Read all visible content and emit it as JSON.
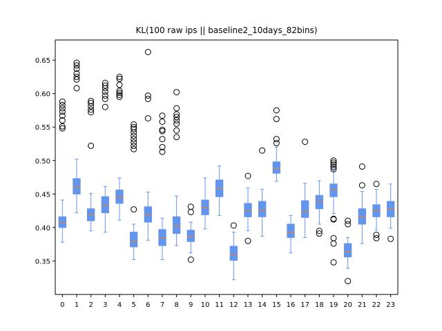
{
  "chart_data": {
    "type": "boxplot",
    "title": "KL(100 raw ips || baseline2_10days_82bins)",
    "xlabel": "",
    "ylabel": "",
    "categories": [
      "0",
      "1",
      "2",
      "3",
      "4",
      "5",
      "6",
      "7",
      "8",
      "9",
      "10",
      "11",
      "12",
      "13",
      "14",
      "15",
      "16",
      "17",
      "18",
      "19",
      "20",
      "21",
      "22",
      "23"
    ],
    "ylim": [
      0.3,
      0.68
    ],
    "yticks": [
      0.35,
      0.4,
      0.45,
      0.5,
      0.55,
      0.6,
      0.65
    ],
    "ytick_labels": [
      "0.35",
      "0.40",
      "0.45",
      "0.50",
      "0.55",
      "0.60",
      "0.65"
    ],
    "box_color": "#6495ed",
    "median_color": "#ff7f0e",
    "grid": false,
    "boxes": [
      {
        "whislo": 0.378,
        "q1": 0.4,
        "med": 0.407,
        "q3": 0.416,
        "whishi": 0.441,
        "fliers": [
          0.548,
          0.551,
          0.56,
          0.567,
          0.573,
          0.578,
          0.583,
          0.588
        ]
      },
      {
        "whislo": 0.422,
        "q1": 0.45,
        "med": 0.46,
        "q3": 0.473,
        "whishi": 0.502,
        "fliers": [
          0.608,
          0.621,
          0.625,
          0.63,
          0.637,
          0.642,
          0.646
        ]
      },
      {
        "whislo": 0.395,
        "q1": 0.41,
        "med": 0.419,
        "q3": 0.428,
        "whishi": 0.451,
        "fliers": [
          0.522,
          0.572,
          0.576,
          0.581,
          0.586,
          0.589
        ]
      },
      {
        "whislo": 0.393,
        "q1": 0.422,
        "med": 0.433,
        "q3": 0.446,
        "whishi": 0.461,
        "fliers": [
          0.58,
          0.592,
          0.597,
          0.603,
          0.608,
          0.612,
          0.616
        ]
      },
      {
        "whislo": 0.411,
        "q1": 0.436,
        "med": 0.445,
        "q3": 0.456,
        "whishi": 0.474,
        "fliers": [
          0.595,
          0.598,
          0.601,
          0.604,
          0.613,
          0.622,
          0.625
        ]
      },
      {
        "whislo": 0.352,
        "q1": 0.371,
        "med": 0.379,
        "q3": 0.393,
        "whishi": 0.405,
        "fliers": [
          0.427,
          0.517,
          0.522,
          0.527,
          0.532,
          0.537,
          0.542,
          0.547,
          0.55,
          0.554
        ]
      },
      {
        "whislo": 0.381,
        "q1": 0.408,
        "med": 0.42,
        "q3": 0.431,
        "whishi": 0.453,
        "fliers": [
          0.563,
          0.592,
          0.597,
          0.662
        ]
      },
      {
        "whislo": 0.352,
        "q1": 0.373,
        "med": 0.384,
        "q3": 0.397,
        "whishi": 0.414,
        "fliers": [
          0.513,
          0.52,
          0.532,
          0.544,
          0.546,
          0.558,
          0.567
        ]
      },
      {
        "whislo": 0.373,
        "q1": 0.391,
        "med": 0.402,
        "q3": 0.416,
        "whishi": 0.447,
        "fliers": [
          0.535,
          0.545,
          0.555,
          0.56,
          0.565,
          0.569,
          0.578,
          0.602
        ]
      },
      {
        "whislo": 0.362,
        "q1": 0.379,
        "med": 0.386,
        "q3": 0.396,
        "whishi": 0.408,
        "fliers": [
          0.352,
          0.423,
          0.431
        ]
      },
      {
        "whislo": 0.398,
        "q1": 0.419,
        "med": 0.43,
        "q3": 0.441,
        "whishi": 0.474,
        "fliers": []
      },
      {
        "whislo": 0.418,
        "q1": 0.446,
        "med": 0.459,
        "q3": 0.471,
        "whishi": 0.492,
        "fliers": []
      },
      {
        "whislo": 0.322,
        "q1": 0.351,
        "med": 0.36,
        "q3": 0.372,
        "whishi": 0.393,
        "fliers": [
          0.403
        ]
      },
      {
        "whislo": 0.395,
        "q1": 0.416,
        "med": 0.425,
        "q3": 0.436,
        "whishi": 0.459,
        "fliers": [
          0.38,
          0.477
        ]
      },
      {
        "whislo": 0.387,
        "q1": 0.416,
        "med": 0.426,
        "q3": 0.439,
        "whishi": 0.457,
        "fliers": [
          0.515
        ]
      },
      {
        "whislo": 0.469,
        "q1": 0.481,
        "med": 0.488,
        "q3": 0.498,
        "whishi": 0.52,
        "fliers": [
          0.526,
          0.532,
          0.562,
          0.575
        ]
      },
      {
        "whislo": 0.362,
        "q1": 0.385,
        "med": 0.393,
        "q3": 0.405,
        "whishi": 0.418,
        "fliers": []
      },
      {
        "whislo": 0.385,
        "q1": 0.415,
        "med": 0.424,
        "q3": 0.44,
        "whishi": 0.466,
        "fliers": [
          0.528
        ]
      },
      {
        "whislo": 0.405,
        "q1": 0.428,
        "med": 0.439,
        "q3": 0.448,
        "whishi": 0.47,
        "fliers": [
          0.391,
          0.395
        ]
      },
      {
        "whislo": 0.421,
        "q1": 0.446,
        "med": 0.456,
        "q3": 0.465,
        "whishi": 0.488,
        "fliers": [
          0.348,
          0.376,
          0.384,
          0.412,
          0.413,
          0.487,
          0.49,
          0.494,
          0.497,
          0.5
        ]
      },
      {
        "whislo": 0.339,
        "q1": 0.356,
        "med": 0.364,
        "q3": 0.376,
        "whishi": 0.385,
        "fliers": [
          0.32,
          0.405,
          0.41
        ]
      },
      {
        "whislo": 0.376,
        "q1": 0.405,
        "med": 0.416,
        "q3": 0.428,
        "whishi": 0.454,
        "fliers": [
          0.463,
          0.491
        ]
      },
      {
        "whislo": 0.396,
        "q1": 0.416,
        "med": 0.426,
        "q3": 0.434,
        "whishi": 0.457,
        "fliers": [
          0.384,
          0.389,
          0.465
        ]
      },
      {
        "whislo": 0.399,
        "q1": 0.416,
        "med": 0.428,
        "q3": 0.439,
        "whishi": 0.465,
        "fliers": [
          0.383
        ]
      }
    ]
  }
}
